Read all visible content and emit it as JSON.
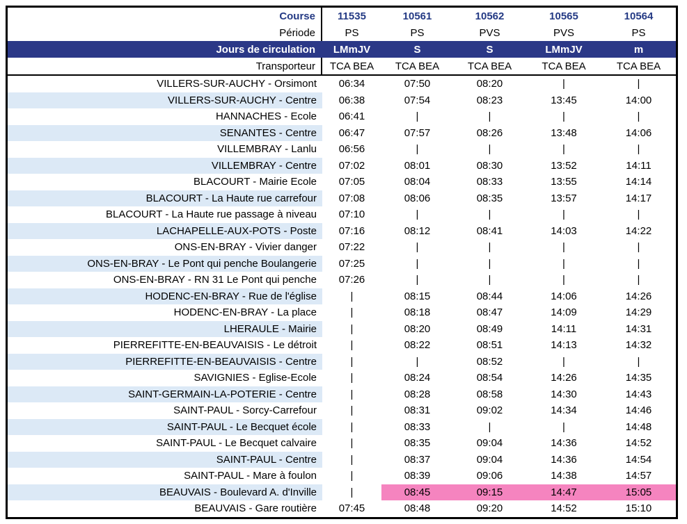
{
  "table": {
    "colors": {
      "header_band": "#2B3887",
      "course_text": "#243A84",
      "row_shade": "#DCE9F6",
      "highlight": "#F584BF"
    },
    "no_service_symbol": "|",
    "header_rows": [
      {
        "id": "course",
        "label": "Course",
        "values": [
          "11535",
          "10561",
          "10562",
          "10565",
          "10564"
        ]
      },
      {
        "id": "periode",
        "label": "Période",
        "values": [
          "PS",
          "PS",
          "PVS",
          "PVS",
          "PS"
        ]
      },
      {
        "id": "jours",
        "label": "Jours de circulation",
        "values": [
          "LMmJV",
          "S",
          "S",
          "LMmJV",
          "m"
        ]
      },
      {
        "id": "transporteur",
        "label": "Transporteur",
        "values": [
          "TCA BEA",
          "TCA BEA",
          "TCA BEA",
          "TCA BEA",
          "TCA BEA"
        ]
      }
    ],
    "rows": [
      {
        "stop": "VILLERS-SUR-AUCHY - Orsimont",
        "times": [
          "06:34",
          "07:50",
          "08:20",
          "|",
          "|"
        ]
      },
      {
        "stop": "VILLERS-SUR-AUCHY - Centre",
        "times": [
          "06:38",
          "07:54",
          "08:23",
          "13:45",
          "14:00"
        ]
      },
      {
        "stop": "HANNACHES - Ecole",
        "times": [
          "06:41",
          "|",
          "|",
          "|",
          "|"
        ]
      },
      {
        "stop": "SENANTES - Centre",
        "times": [
          "06:47",
          "07:57",
          "08:26",
          "13:48",
          "14:06"
        ]
      },
      {
        "stop": "VILLEMBRAY - Lanlu",
        "times": [
          "06:56",
          "|",
          "|",
          "|",
          "|"
        ]
      },
      {
        "stop": "VILLEMBRAY - Centre",
        "times": [
          "07:02",
          "08:01",
          "08:30",
          "13:52",
          "14:11"
        ]
      },
      {
        "stop": "BLACOURT - Mairie Ecole",
        "times": [
          "07:05",
          "08:04",
          "08:33",
          "13:55",
          "14:14"
        ]
      },
      {
        "stop": "BLACOURT - La Haute rue carrefour",
        "times": [
          "07:08",
          "08:06",
          "08:35",
          "13:57",
          "14:17"
        ]
      },
      {
        "stop": "BLACOURT - La Haute rue passage à niveau",
        "times": [
          "07:10",
          "|",
          "|",
          "|",
          "|"
        ]
      },
      {
        "stop": "LACHAPELLE-AUX-POTS - Poste",
        "times": [
          "07:16",
          "08:12",
          "08:41",
          "14:03",
          "14:22"
        ]
      },
      {
        "stop": "ONS-EN-BRAY - Vivier danger",
        "times": [
          "07:22",
          "|",
          "|",
          "|",
          "|"
        ]
      },
      {
        "stop": "ONS-EN-BRAY - Le Pont qui penche Boulangerie",
        "times": [
          "07:25",
          "|",
          "|",
          "|",
          "|"
        ]
      },
      {
        "stop": "ONS-EN-BRAY - RN 31 Le Pont qui penche",
        "times": [
          "07:26",
          "|",
          "|",
          "|",
          "|"
        ]
      },
      {
        "stop": "HODENC-EN-BRAY - Rue de l'église",
        "times": [
          "|",
          "08:15",
          "08:44",
          "14:06",
          "14:26"
        ]
      },
      {
        "stop": "HODENC-EN-BRAY - La place",
        "times": [
          "|",
          "08:18",
          "08:47",
          "14:09",
          "14:29"
        ]
      },
      {
        "stop": "LHERAULE - Mairie",
        "times": [
          "|",
          "08:20",
          "08:49",
          "14:11",
          "14:31"
        ]
      },
      {
        "stop": "PIERREFITTE-EN-BEAUVAISIS - Le détroit",
        "times": [
          "|",
          "08:22",
          "08:51",
          "14:13",
          "14:32"
        ]
      },
      {
        "stop": "PIERREFITTE-EN-BEAUVAISIS - Centre",
        "times": [
          "|",
          "|",
          "08:52",
          "|",
          "|"
        ]
      },
      {
        "stop": "SAVIGNIES - Eglise-Ecole",
        "times": [
          "|",
          "08:24",
          "08:54",
          "14:26",
          "14:35"
        ]
      },
      {
        "stop": "SAINT-GERMAIN-LA-POTERIE - Centre",
        "times": [
          "|",
          "08:28",
          "08:58",
          "14:30",
          "14:43"
        ]
      },
      {
        "stop": "SAINT-PAUL - Sorcy-Carrefour",
        "times": [
          "|",
          "08:31",
          "09:02",
          "14:34",
          "14:46"
        ]
      },
      {
        "stop": "SAINT-PAUL - Le Becquet école",
        "times": [
          "|",
          "08:33",
          "|",
          "|",
          "14:48"
        ]
      },
      {
        "stop": "SAINT-PAUL - Le Becquet calvaire",
        "times": [
          "|",
          "08:35",
          "09:04",
          "14:36",
          "14:52"
        ]
      },
      {
        "stop": "SAINT-PAUL - Centre",
        "times": [
          "|",
          "08:37",
          "09:04",
          "14:36",
          "14:54"
        ]
      },
      {
        "stop": "SAINT-PAUL - Mare à foulon",
        "times": [
          "|",
          "08:39",
          "09:06",
          "14:38",
          "14:57"
        ]
      },
      {
        "stop": "BEAUVAIS - Boulevard A. d'Inville",
        "times": [
          "|",
          "08:45",
          "09:15",
          "14:47",
          "15:05"
        ],
        "highlight": true
      },
      {
        "stop": "BEAUVAIS - Gare routière",
        "times": [
          "07:45",
          "08:48",
          "09:20",
          "14:52",
          "15:10"
        ]
      }
    ]
  }
}
